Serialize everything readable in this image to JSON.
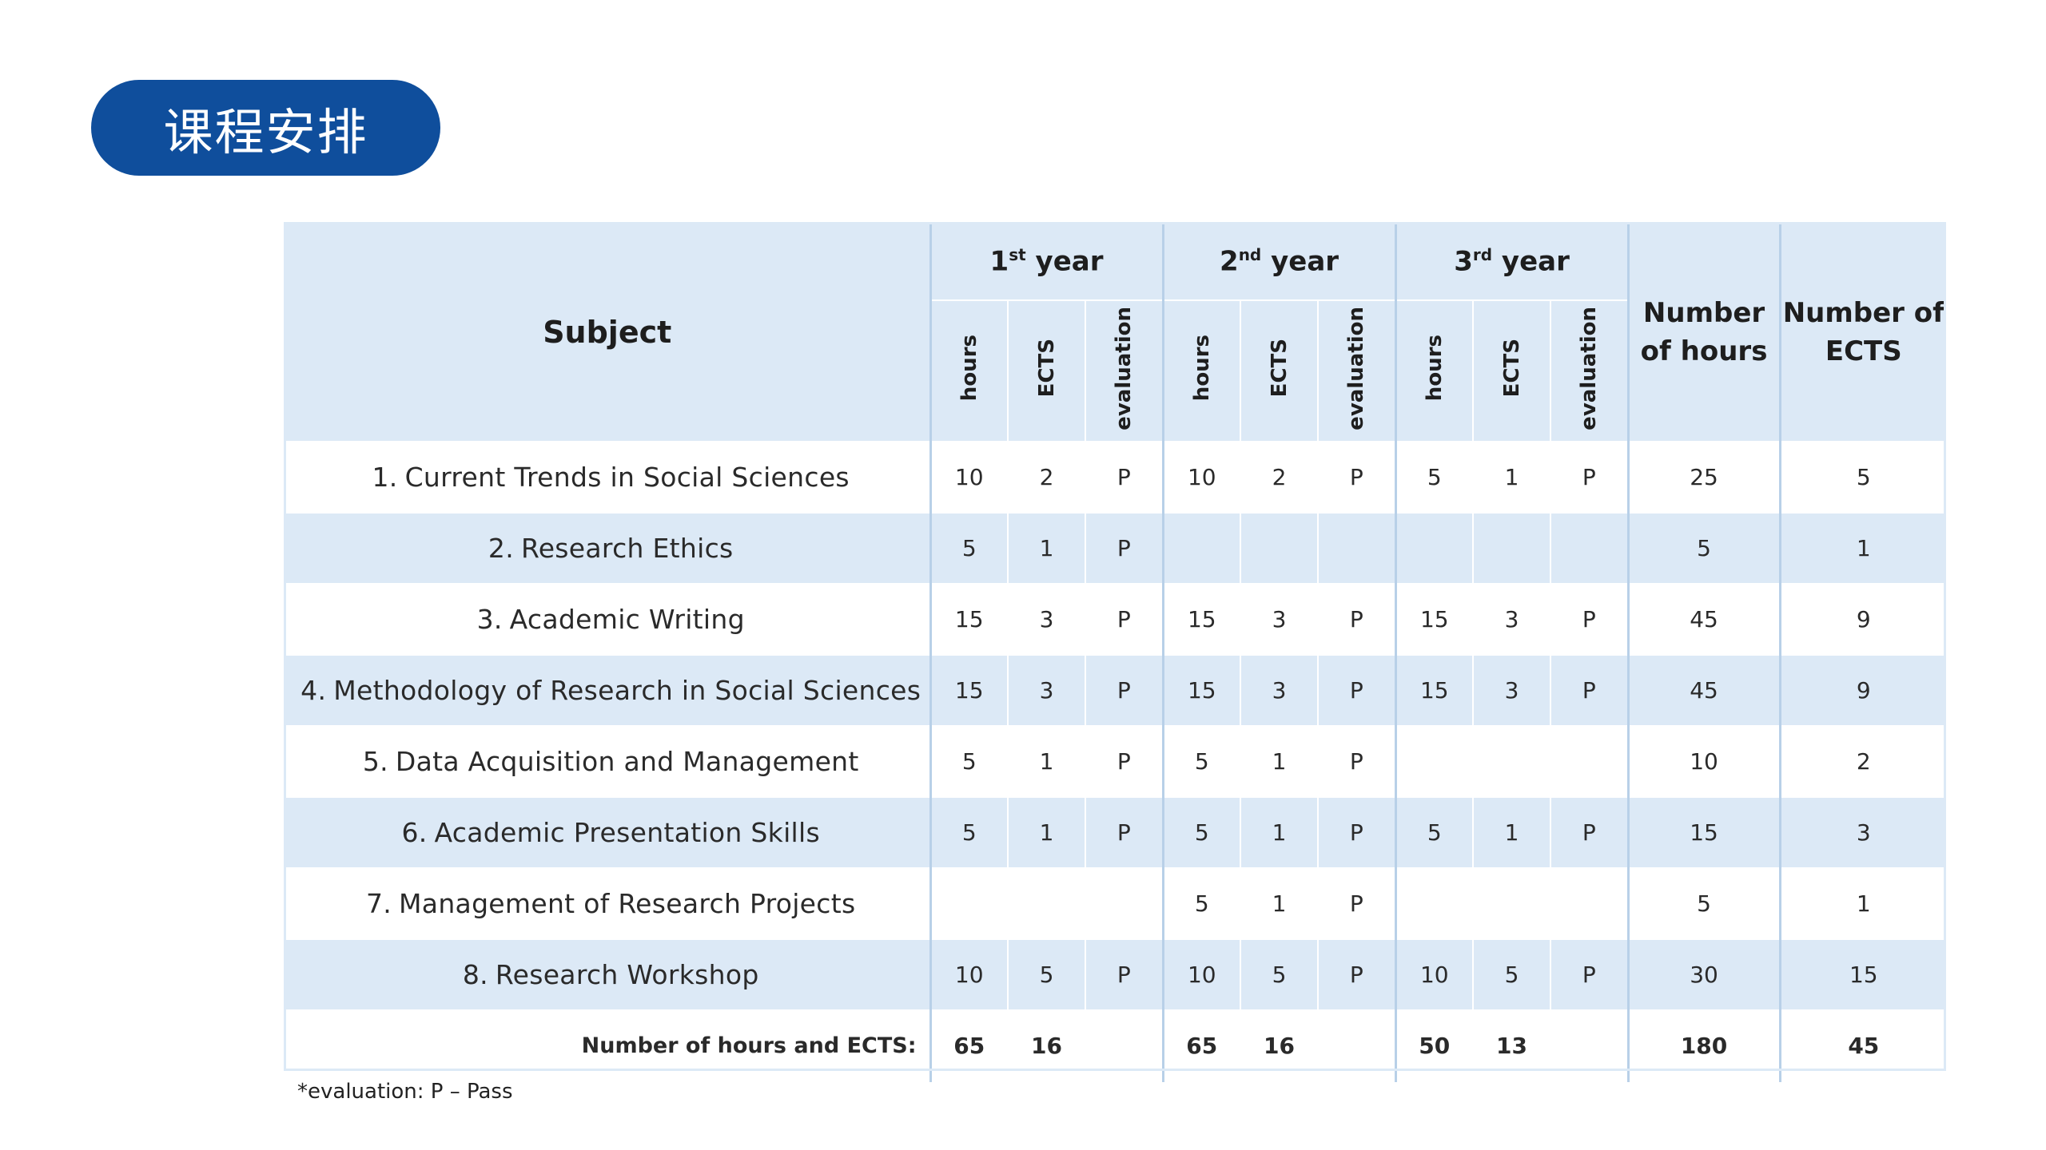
{
  "title": "课程安排",
  "table": {
    "subject_header": "Subject",
    "years": [
      {
        "num": "1",
        "sup": "st",
        "word": "year"
      },
      {
        "num": "2",
        "sup": "nd",
        "word": "year"
      },
      {
        "num": "3",
        "sup": "rd",
        "word": "year"
      }
    ],
    "sub_headers": [
      "hours",
      "ECTS",
      "evaluation"
    ],
    "total_hours_header": "Number of hours",
    "total_ects_header": "Number of ECTS",
    "rows": [
      {
        "num": "1.",
        "subject": "Current Trends in Social Sciences",
        "cells": [
          "10",
          "2",
          "P",
          "10",
          "2",
          "P",
          "5",
          "1",
          "P"
        ],
        "hours": "25",
        "ects": "5"
      },
      {
        "num": "2.",
        "subject": "Research Ethics",
        "cells": [
          "5",
          "1",
          "P",
          "",
          "",
          "",
          "",
          "",
          ""
        ],
        "hours": "5",
        "ects": "1"
      },
      {
        "num": "3.",
        "subject": "Academic Writing",
        "cells": [
          "15",
          "3",
          "P",
          "15",
          "3",
          "P",
          "15",
          "3",
          "P"
        ],
        "hours": "45",
        "ects": "9"
      },
      {
        "num": "4.",
        "subject": "Methodology of Research in Social Sciences",
        "cells": [
          "15",
          "3",
          "P",
          "15",
          "3",
          "P",
          "15",
          "3",
          "P"
        ],
        "hours": "45",
        "ects": "9"
      },
      {
        "num": "5.",
        "subject": "Data Acquisition and Management",
        "cells": [
          "5",
          "1",
          "P",
          "5",
          "1",
          "P",
          "",
          "",
          ""
        ],
        "hours": "10",
        "ects": "2"
      },
      {
        "num": "6.",
        "subject": "Academic Presentation Skills",
        "cells": [
          "5",
          "1",
          "P",
          "5",
          "1",
          "P",
          "5",
          "1",
          "P"
        ],
        "hours": "15",
        "ects": "3"
      },
      {
        "num": "7.",
        "subject": "Management of Research Projects",
        "cells": [
          "",
          "",
          "",
          "5",
          "1",
          "P",
          "",
          "",
          ""
        ],
        "hours": "5",
        "ects": "1"
      },
      {
        "num": "8.",
        "subject": "Research Workshop",
        "cells": [
          "10",
          "5",
          "P",
          "10",
          "5",
          "P",
          "10",
          "5",
          "P"
        ],
        "hours": "30",
        "ects": "15"
      }
    ],
    "totals": {
      "label": "Number of hours and ECTS:",
      "cells": [
        "65",
        "16",
        "",
        "65",
        "16",
        "",
        "50",
        "13",
        ""
      ],
      "hours": "180",
      "ects": "45"
    }
  },
  "footnote": "*evaluation: P – Pass"
}
